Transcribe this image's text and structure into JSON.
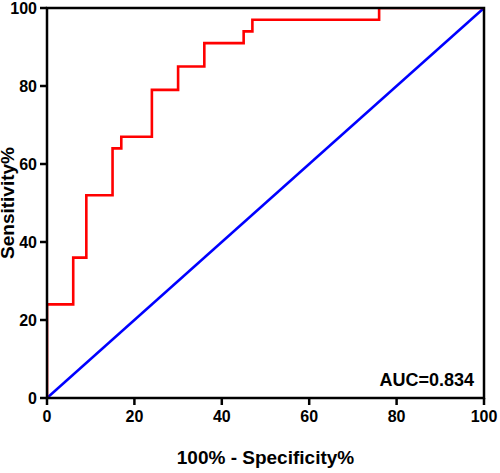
{
  "chart_data": {
    "type": "line",
    "x_label": "100% - Specificity%",
    "y_label": "Sensitivity%",
    "annotation": "AUC=0.834",
    "xlim": [
      0,
      100
    ],
    "ylim": [
      0,
      100
    ],
    "xticks": [
      0,
      20,
      40,
      60,
      80,
      100
    ],
    "yticks": [
      0,
      20,
      40,
      60,
      80,
      100
    ],
    "grid": false,
    "series": [
      {
        "color": "#ff0000",
        "line_style": "solid",
        "x": [
          0,
          0,
          6,
          6,
          9,
          9,
          15,
          15,
          17,
          17,
          24,
          24,
          30,
          30,
          36,
          36,
          45,
          45,
          47,
          47,
          76,
          76,
          100
        ],
        "values": [
          0,
          24,
          24,
          36,
          36,
          52,
          52,
          64,
          64,
          67,
          67,
          79,
          79,
          85,
          85,
          91,
          91,
          94,
          94,
          97,
          97,
          100,
          100
        ]
      },
      {
        "color": "#0000ff",
        "line_style": "solid",
        "x": [
          0,
          100
        ],
        "values": [
          0,
          100
        ]
      }
    ]
  }
}
